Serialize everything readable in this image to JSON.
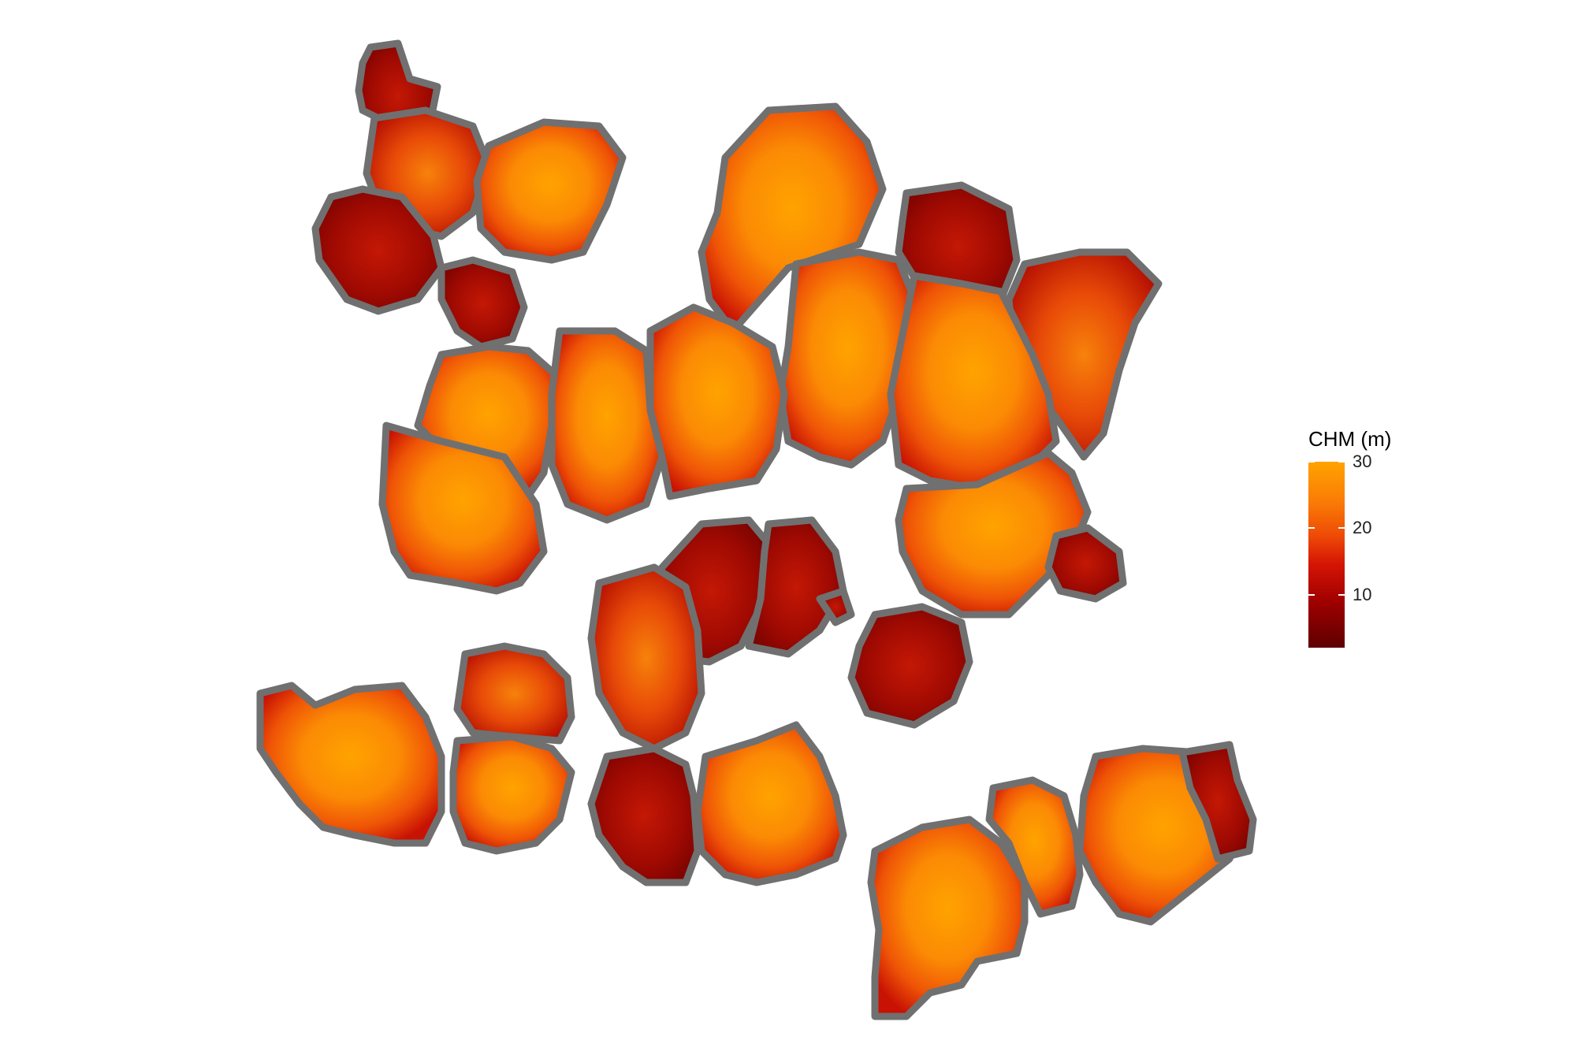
{
  "legend": {
    "title": "CHM (m)",
    "min": 2,
    "max": 30,
    "ticks": [
      {
        "value": 30,
        "label": "30"
      },
      {
        "value": 20,
        "label": "20"
      },
      {
        "value": 10,
        "label": "10"
      }
    ],
    "color_stops": [
      "#5e0000",
      "#a00000",
      "#d51505",
      "#ee4a06",
      "#fa7b06",
      "#ffa300"
    ]
  },
  "map": {
    "outline_color": "#707070",
    "crown_count": 33
  }
}
